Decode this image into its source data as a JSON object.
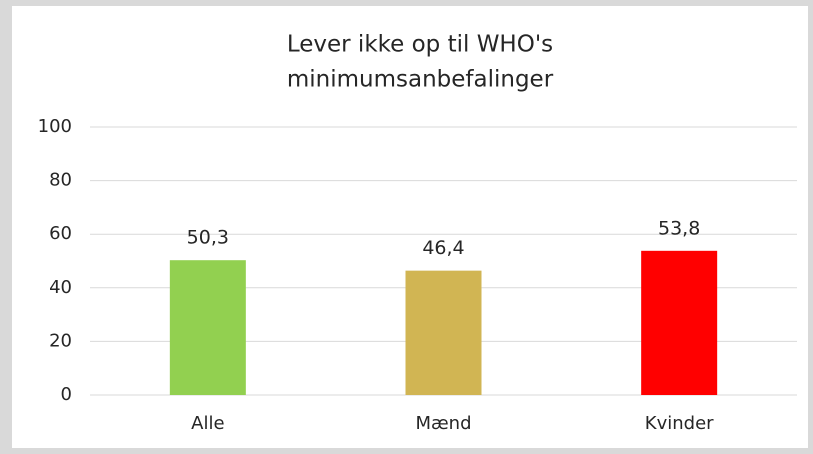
{
  "chart_data": {
    "type": "bar",
    "title": [
      "Lever ikke op til WHO's",
      "minimumsanbefalinger"
    ],
    "categories": [
      "Alle",
      "Mænd",
      "Kvinder"
    ],
    "values": [
      50.3,
      46.4,
      53.8
    ],
    "value_labels": [
      "50,3",
      "46,4",
      "53,8"
    ],
    "colors": [
      "#92d050",
      "#d1b553",
      "#ff0000"
    ],
    "ylim": [
      0,
      100
    ],
    "yticks": [
      0,
      20,
      40,
      60,
      80,
      100
    ],
    "grid": true
  }
}
